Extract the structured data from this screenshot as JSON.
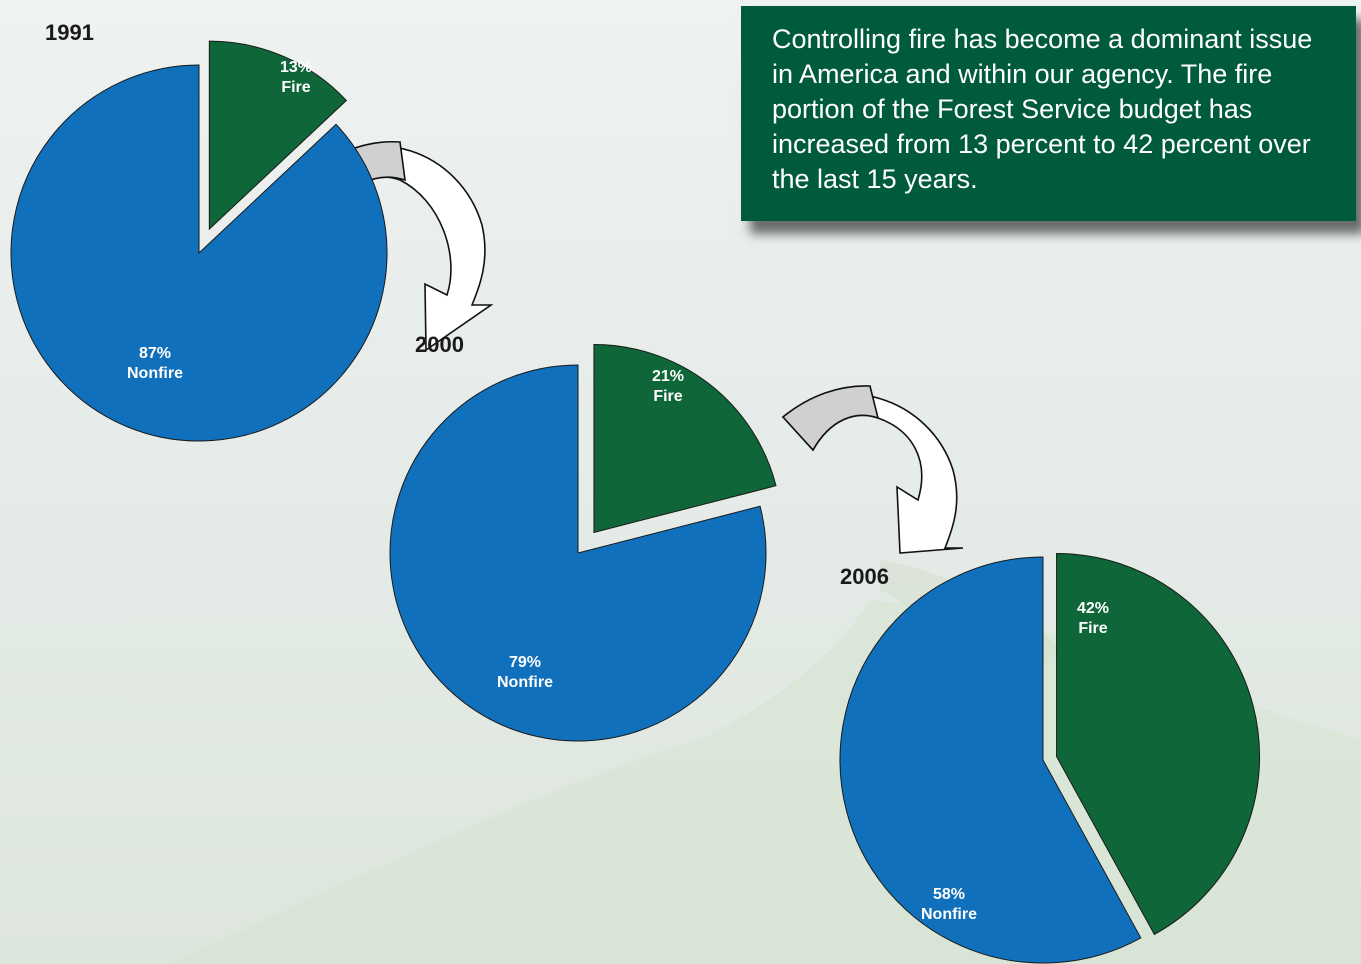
{
  "info_text": "Controlling fire has become a dominant issue in America and within our agency. The fire portion of the Forest Service budget has increased from 13 percent to 42 percent over the last 15 years.",
  "colors": {
    "fire": "#0f6638",
    "nonfire": "#1170bb",
    "info_box": "#005a3e",
    "arrow": "#d0d0d0"
  },
  "chart_data": [
    {
      "type": "pie",
      "title": "1991",
      "slices": [
        {
          "name": "Fire",
          "value": 13,
          "label_pct": "13%",
          "label_name": "Fire"
        },
        {
          "name": "Nonfire",
          "value": 87,
          "label_pct": "87%",
          "label_name": "Nonfire"
        }
      ]
    },
    {
      "type": "pie",
      "title": "2000",
      "slices": [
        {
          "name": "Fire",
          "value": 21,
          "label_pct": "21%",
          "label_name": "Fire"
        },
        {
          "name": "Nonfire",
          "value": 79,
          "label_pct": "79%",
          "label_name": "Nonfire"
        }
      ]
    },
    {
      "type": "pie",
      "title": "2006",
      "slices": [
        {
          "name": "Fire",
          "value": 42,
          "label_pct": "42%",
          "label_name": "Fire"
        },
        {
          "name": "Nonfire",
          "value": 58,
          "label_pct": "58%",
          "label_name": "Nonfire"
        }
      ]
    }
  ]
}
